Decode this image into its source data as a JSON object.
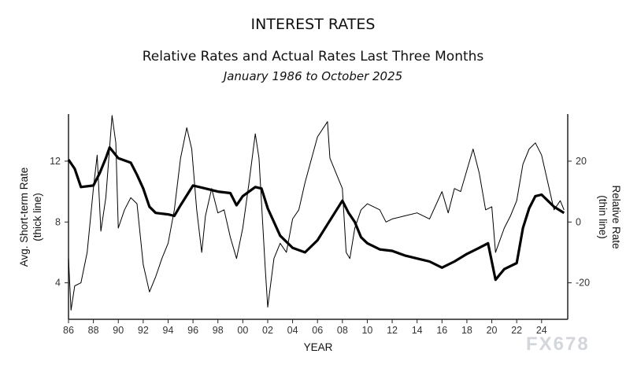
{
  "chart_data": {
    "type": "line",
    "title": "INTEREST RATES",
    "subtitle": "Relative Rates and Actual Rates Last Three Months",
    "date_range": "January 1986 to October 2025",
    "xlabel": "YEAR",
    "ylabel_left": "Avg. Short-term Rate",
    "ylabel_left_note": "(thick line)",
    "ylabel_right": "Relative Rate",
    "ylabel_right_note": "(thin line)",
    "x_ticks": [
      "86",
      "88",
      "90",
      "92",
      "94",
      "96",
      "98",
      "00",
      "02",
      "04",
      "06",
      "08",
      "10",
      "12",
      "14",
      "16",
      "18",
      "20",
      "22",
      "24"
    ],
    "x_tick_years": [
      1986,
      1988,
      1990,
      1992,
      1994,
      1996,
      1998,
      2000,
      2002,
      2004,
      2006,
      2008,
      2010,
      2012,
      2014,
      2016,
      2018,
      2020,
      2022,
      2024
    ],
    "xlim": [
      1986,
      2026.1
    ],
    "y_left_ticks": [
      "4",
      "8",
      "12"
    ],
    "y_left_values": [
      4,
      8,
      12
    ],
    "ylim_left": [
      1.6,
      15.1
    ],
    "y_right_ticks": [
      "-20",
      "0",
      "20"
    ],
    "y_right_values": [
      -20,
      0,
      20
    ],
    "ylim_right": [
      -32,
      35.5
    ],
    "grid": false,
    "series": [
      {
        "name": "Avg. Short-term Rate",
        "axis": "left",
        "style": "thick",
        "color": "#000000",
        "x": [
          1986,
          1986.5,
          1987,
          1988,
          1988.5,
          1989,
          1989.3,
          1990,
          1991,
          1991.5,
          1992,
          1992.5,
          1993,
          1994,
          1994.5,
          1995,
          1996,
          1997,
          1998,
          1999,
          1999.5,
          2000,
          2001,
          2001.5,
          2002,
          2003,
          2004,
          2005,
          2006,
          2007,
          2008,
          2008.5,
          2009,
          2009.5,
          2010,
          2011,
          2012,
          2013,
          2014,
          2015,
          2016,
          2017,
          2018,
          2019,
          2019.7,
          2020.3,
          2021,
          2022,
          2022.5,
          2023,
          2023.5,
          2024,
          2024.5,
          2025,
          2025.8
        ],
        "y": [
          12.1,
          11.5,
          10.3,
          10.4,
          11.2,
          12.2,
          12.9,
          12.2,
          11.9,
          11.1,
          10.2,
          9.0,
          8.6,
          8.5,
          8.4,
          9.1,
          10.4,
          10.2,
          10.0,
          9.9,
          9.1,
          9.7,
          10.3,
          10.2,
          8.9,
          7.1,
          6.3,
          6.0,
          6.8,
          8.1,
          9.4,
          8.6,
          8.0,
          7.0,
          6.6,
          6.2,
          6.1,
          5.8,
          5.6,
          5.4,
          5.0,
          5.4,
          5.9,
          6.3,
          6.6,
          4.2,
          4.9,
          5.3,
          7.6,
          8.9,
          9.7,
          9.8,
          9.4,
          9.0,
          8.6
        ]
      },
      {
        "name": "Relative Rate",
        "axis": "right",
        "style": "thin",
        "color": "#000000",
        "x": [
          1986,
          1986.2,
          1986.5,
          1987,
          1987.5,
          1988,
          1988.3,
          1988.6,
          1989,
          1989.5,
          1989.8,
          1990,
          1990.5,
          1991,
          1991.5,
          1992,
          1992.5,
          1993,
          1993.5,
          1994,
          1994.5,
          1995,
          1995.5,
          1995.9,
          1996.3,
          1996.7,
          1997,
          1997.5,
          1998,
          1998.5,
          1999,
          1999.5,
          2000,
          2000.5,
          2001,
          2001.3,
          2001.8,
          2002,
          2002.5,
          2003,
          2003.5,
          2004,
          2004.5,
          2005,
          2006,
          2006.8,
          2007,
          2007.5,
          2008,
          2008.3,
          2008.6,
          2009,
          2009.5,
          2010,
          2011,
          2011.5,
          2012,
          2013,
          2014,
          2015,
          2016,
          2016.5,
          2017,
          2017.5,
          2018,
          2018.5,
          2019,
          2019.5,
          2020,
          2020.3,
          2021,
          2021.5,
          2022,
          2022.5,
          2023,
          2023.5,
          2024,
          2024.5,
          2025,
          2025.5,
          2025.8
        ],
        "y": [
          -12,
          -29,
          -21,
          -20,
          -10,
          11,
          22,
          -3,
          8,
          35,
          26,
          -2,
          4,
          8,
          6,
          -14,
          -23,
          -18,
          -12,
          -7,
          4,
          21,
          31,
          24,
          4,
          -10,
          2,
          11,
          3,
          4,
          -5,
          -12,
          -2,
          13,
          29,
          21,
          -15,
          -28,
          -12,
          -7,
          -10,
          1,
          4,
          13,
          28,
          33,
          21,
          16,
          11,
          -10,
          -12,
          -2,
          4,
          6,
          4,
          0,
          1,
          2,
          3,
          1,
          10,
          3,
          11,
          10,
          17,
          24,
          16,
          4,
          5,
          -10,
          -2,
          2,
          7,
          19,
          24,
          26,
          22,
          13,
          4,
          7,
          4
        ]
      }
    ]
  },
  "watermark": "FX678"
}
